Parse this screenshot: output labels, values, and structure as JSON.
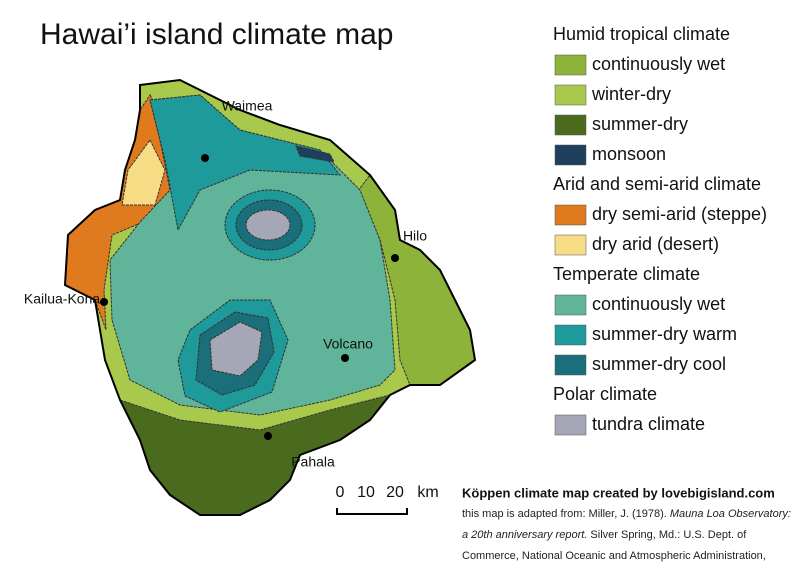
{
  "title": "Hawai’i island climate map",
  "map": {
    "towns": [
      "Waimea",
      "Hilo",
      "Kailua-Kona",
      "Volcano",
      "Pahala"
    ]
  },
  "legend": {
    "groups": [
      {
        "heading": "Humid tropical climate",
        "items": [
          {
            "label": "continuously wet",
            "color": "#8db33a"
          },
          {
            "label": "winter-dry",
            "color": "#a8c94c"
          },
          {
            "label": "summer-dry",
            "color": "#4a6b1e"
          },
          {
            "label": "monsoon",
            "color": "#1f3f5e"
          }
        ]
      },
      {
        "heading": "Arid and semi-arid climate",
        "items": [
          {
            "label": "dry semi-arid (steppe)",
            "color": "#e07a1f"
          },
          {
            "label": "dry arid (desert)",
            "color": "#f5dc85"
          }
        ]
      },
      {
        "heading": "Temperate climate",
        "items": [
          {
            "label": "continuously wet",
            "color": "#5fb49a"
          },
          {
            "label": "summer-dry warm",
            "color": "#1f9a9a"
          },
          {
            "label": "summer-dry cool",
            "color": "#1a6f7a"
          }
        ]
      },
      {
        "heading": "Polar climate",
        "items": [
          {
            "label": "tundra climate",
            "color": "#a6a7b6"
          }
        ]
      }
    ]
  },
  "scale_bar": {
    "labels": [
      "0",
      "10",
      "20"
    ],
    "unit": "km"
  },
  "credit": {
    "line": "Köppen climate map created by lovebigisland.com",
    "source_prefix": "this map is adapted from: Miller, J. (1978). ",
    "source_title": "Mauna Loa Observatory: a 20th anniversary report.",
    "source_rest": " Silver Spring, Md.: U.S. Dept. of Commerce, National Oceanic and Atmospheric Administration,"
  }
}
